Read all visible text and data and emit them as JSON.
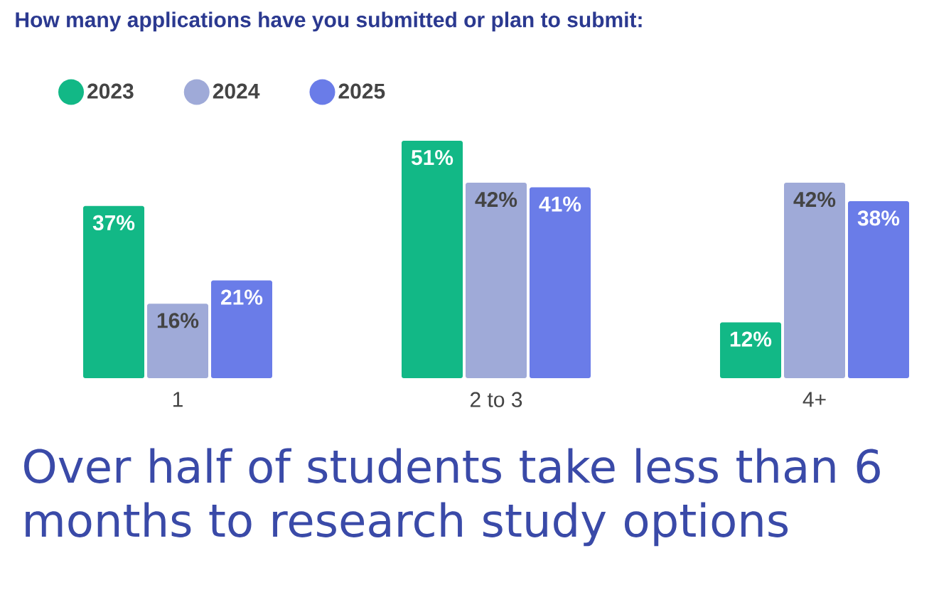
{
  "chart_data": {
    "type": "bar",
    "title": "How many applications have you submitted or plan to submit:",
    "categories": [
      "1",
      "2 to 3",
      "4+"
    ],
    "series": [
      {
        "name": "2023",
        "color": "#12b886",
        "values": [
          37,
          51,
          12
        ],
        "value_labels": [
          "37%",
          "51%",
          "12%"
        ]
      },
      {
        "name": "2024",
        "color": "#9faad8",
        "values": [
          16,
          42,
          42
        ],
        "value_labels": [
          "16%",
          "42%",
          "42%"
        ]
      },
      {
        "name": "2025",
        "color": "#6a7ce8",
        "values": [
          21,
          41,
          38
        ],
        "value_labels": [
          "21%",
          "41%",
          "38%"
        ]
      }
    ],
    "legend": "top left",
    "annotations": [
      "Over half of students take less than 6 months to research study options"
    ]
  }
}
